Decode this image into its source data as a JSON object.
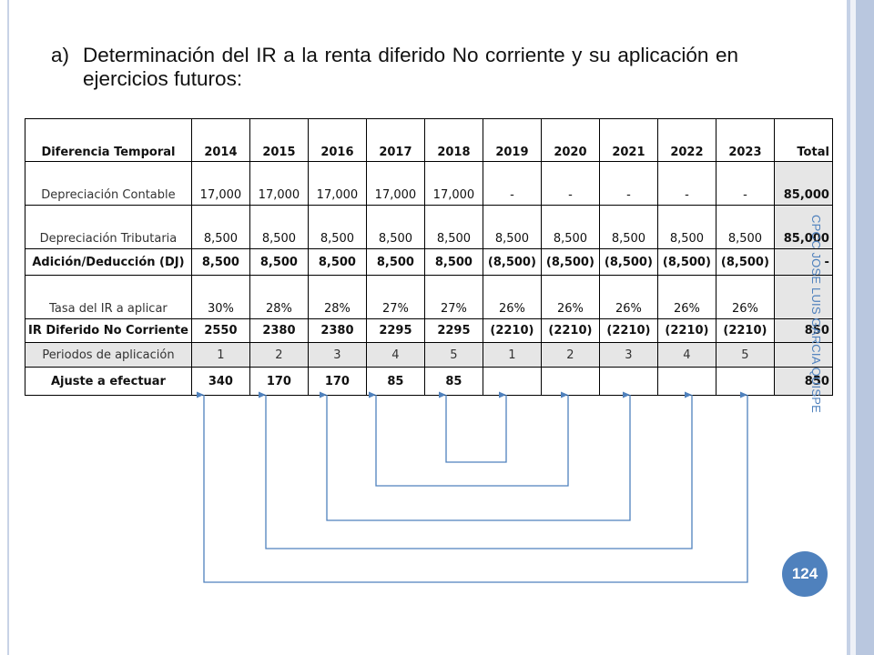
{
  "title": {
    "item_label": "a)",
    "text": "Determinación del IR a la renta diferido No corriente y su aplicación en ejercicios futuros:"
  },
  "table": {
    "header": [
      "Diferencia Temporal",
      "2014",
      "2015",
      "2016",
      "2017",
      "2018",
      "2019",
      "2020",
      "2021",
      "2022",
      "2023",
      "Total"
    ],
    "rows": [
      {
        "label": "Depreciación Contable",
        "cells": [
          "17,000",
          "17,000",
          "17,000",
          "17,000",
          "17,000",
          "-",
          "-",
          "-",
          "-",
          "-"
        ],
        "total": "85,000"
      },
      {
        "label": "Depreciación Tributaria",
        "cells": [
          "8,500",
          "8,500",
          "8,500",
          "8,500",
          "8,500",
          "8,500",
          "8,500",
          "8,500",
          "8,500",
          "8,500"
        ],
        "total": "85,000"
      },
      {
        "label": "Adición/Deducción (DJ)",
        "cells": [
          "8,500",
          "8,500",
          "8,500",
          "8,500",
          "8,500",
          "(8,500)",
          "(8,500)",
          "(8,500)",
          "(8,500)",
          "(8,500)"
        ],
        "total": "-"
      },
      {
        "label": "Tasa del IR a aplicar",
        "cells": [
          "30%",
          "28%",
          "28%",
          "27%",
          "27%",
          "26%",
          "26%",
          "26%",
          "26%",
          "26%"
        ],
        "total": ""
      },
      {
        "label": "IR Diferido No Corriente",
        "cells": [
          "2550",
          "2380",
          "2380",
          "2295",
          "2295",
          "(2210)",
          "(2210)",
          "(2210)",
          "(2210)",
          "(2210)"
        ],
        "total": "850"
      },
      {
        "label": "Periodos de aplicación",
        "cells": [
          "1",
          "2",
          "3",
          "4",
          "5",
          "1",
          "2",
          "3",
          "4",
          "5"
        ],
        "total": ""
      },
      {
        "label": "Ajuste a efectuar",
        "cells": [
          "340",
          "170",
          "170",
          "85",
          "85",
          "",
          "",
          "",
          "",
          ""
        ],
        "total": "850"
      }
    ]
  },
  "sidebar_author": "CPCC JOSE LUIS GARCIA QUISPE",
  "page_number": "124",
  "colors": {
    "accent": "#4f81bd",
    "total_fill": "#e6e6e6",
    "right_band": "#c5d1e6"
  }
}
